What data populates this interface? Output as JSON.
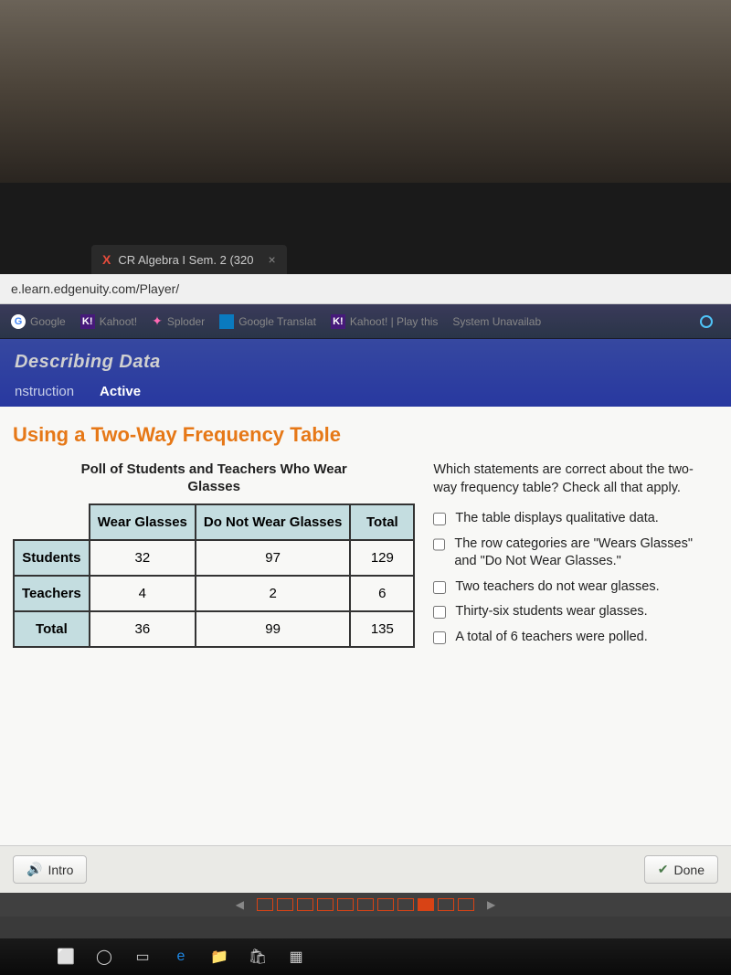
{
  "browser": {
    "tab_icon_text": "X",
    "tab_title": "CR Algebra I Sem. 2 (320",
    "tab_close": "×",
    "url": "e.learn.edgenuity.com/Player/"
  },
  "bookmarks": {
    "google": "Google",
    "kahoot1": "Kahoot!",
    "sploder": "Sploder",
    "gtranslate": "Google Translat",
    "kahoot2": "Kahoot! | Play this",
    "system": "System Unavailab"
  },
  "page": {
    "breadcrumb": "Describing Data",
    "tab_instruction": "nstruction",
    "tab_active": "Active",
    "lesson_title": "Using a Two-Way Frequency Table"
  },
  "poll": {
    "title": "Poll of Students and Teachers Who Wear",
    "subtitle": "Glasses",
    "col1": "Wear Glasses",
    "col2": "Do Not Wear Glasses",
    "col3": "Total",
    "row1_label": "Students",
    "row1_c1": "32",
    "row1_c2": "97",
    "row1_c3": "129",
    "row2_label": "Teachers",
    "row2_c1": "4",
    "row2_c2": "2",
    "row2_c3": "6",
    "row3_label": "Total",
    "row3_c1": "36",
    "row3_c2": "99",
    "row3_c3": "135"
  },
  "question": {
    "text": "Which statements are correct about the two-way frequency table? Check all that apply.",
    "opt1": "The table displays qualitative data.",
    "opt2": "The row categories are \"Wears Glasses\" and \"Do Not Wear Glasses.\"",
    "opt3": "Two teachers do not wear glasses.",
    "opt4": "Thirty-six students wear glasses.",
    "opt5": "A total of 6 teachers were polled."
  },
  "buttons": {
    "intro": "Intro",
    "done": "Done"
  },
  "progress": {
    "total_boxes": 11,
    "filled_index": 8
  }
}
